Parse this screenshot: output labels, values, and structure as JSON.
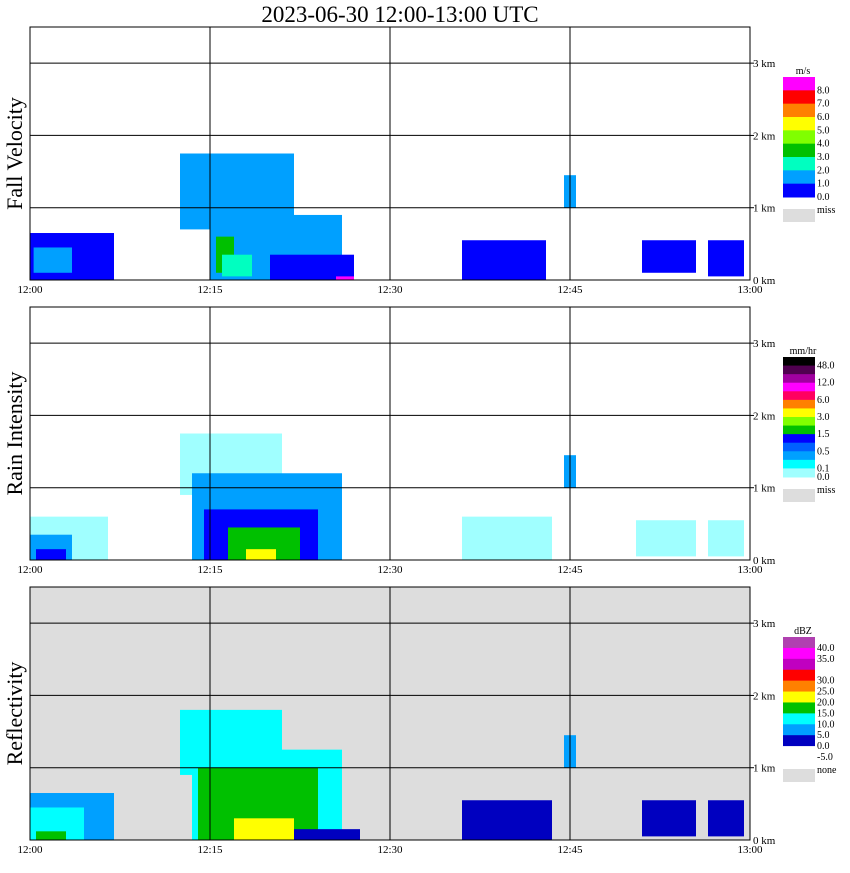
{
  "title": "2023-06-30  12:00-13:00 UTC",
  "chart_data": [
    {
      "type": "heatmap",
      "panel": "Fall Velocity",
      "ylabel": "Fall Velocity",
      "xticks": [
        "12:00",
        "12:15",
        "12:30",
        "12:45",
        "13:00"
      ],
      "yticks": [
        "1 km",
        "2 km",
        "3 km"
      ],
      "ymin_label": "0 km",
      "ylim_km": [
        0,
        3.5
      ],
      "xlim_min": [
        0,
        60
      ],
      "grid": true,
      "background": "white",
      "legend": {
        "unit": "m/s",
        "entries": [
          {
            "label": "8.0",
            "color": "#ff00ff"
          },
          {
            "label": "7.0",
            "color": "#ff0000"
          },
          {
            "label": "6.0",
            "color": "#ff8000"
          },
          {
            "label": "5.0",
            "color": "#ffff00"
          },
          {
            "label": "4.0",
            "color": "#80ff00"
          },
          {
            "label": "3.0",
            "color": "#00c000"
          },
          {
            "label": "2.0",
            "color": "#00ffc0"
          },
          {
            "label": "1.0",
            "color": "#00a0ff"
          },
          {
            "label": "0.0",
            "color": "#0000ff"
          }
        ],
        "missing": {
          "label": "miss",
          "color": "#dddddd"
        }
      },
      "echoes": [
        {
          "t0": 0,
          "t1": 7,
          "h0": 0,
          "h1": 0.65,
          "color": "#0000ff"
        },
        {
          "t0": 0.3,
          "t1": 3.5,
          "h0": 0.1,
          "h1": 0.45,
          "color": "#00a0ff"
        },
        {
          "t0": 12.5,
          "t1": 22,
          "h0": 0.7,
          "h1": 1.75,
          "color": "#00a0ff"
        },
        {
          "t0": 15,
          "t1": 26,
          "h0": 0,
          "h1": 0.9,
          "color": "#00a0ff"
        },
        {
          "t0": 15.5,
          "t1": 17,
          "h0": 0.1,
          "h1": 0.6,
          "color": "#00c000"
        },
        {
          "t0": 16,
          "t1": 18.5,
          "h0": 0.05,
          "h1": 0.35,
          "color": "#00ffc0"
        },
        {
          "t0": 20,
          "t1": 27,
          "h0": 0,
          "h1": 0.35,
          "color": "#0000ff"
        },
        {
          "t0": 25.5,
          "t1": 27,
          "h0": 0,
          "h1": 0.05,
          "color": "#ff00ff"
        },
        {
          "t0": 36,
          "t1": 43,
          "h0": 0,
          "h1": 0.55,
          "color": "#0000ff"
        },
        {
          "t0": 44.5,
          "t1": 45.5,
          "h0": 1.0,
          "h1": 1.45,
          "color": "#00a0ff"
        },
        {
          "t0": 51,
          "t1": 55.5,
          "h0": 0.1,
          "h1": 0.55,
          "color": "#0000ff"
        },
        {
          "t0": 56.5,
          "t1": 59.5,
          "h0": 0.05,
          "h1": 0.55,
          "color": "#0000ff"
        }
      ]
    },
    {
      "type": "heatmap",
      "panel": "Rain Intensity",
      "ylabel": "Rain Intensity",
      "xticks": [
        "12:00",
        "12:15",
        "12:30",
        "12:45",
        "13:00"
      ],
      "yticks": [
        "1 km",
        "2 km",
        "3 km"
      ],
      "ymin_label": "0 km",
      "ylim_km": [
        0,
        3.5
      ],
      "xlim_min": [
        0,
        60
      ],
      "grid": true,
      "background": "white",
      "legend": {
        "unit": "mm/hr",
        "entries": [
          {
            "label": "48.0",
            "color": "#000000"
          },
          {
            "label": "",
            "color": "#500050"
          },
          {
            "label": "12.0",
            "color": "#a000a0"
          },
          {
            "label": "",
            "color": "#ff00ff"
          },
          {
            "label": "6.0",
            "color": "#ff0060"
          },
          {
            "label": "",
            "color": "#ff8000"
          },
          {
            "label": "3.0",
            "color": "#ffff00"
          },
          {
            "label": "",
            "color": "#80ff00"
          },
          {
            "label": "1.5",
            "color": "#00c000"
          },
          {
            "label": "",
            "color": "#0000ff"
          },
          {
            "label": "0.5",
            "color": "#0060ff"
          },
          {
            "label": "",
            "color": "#00a0ff"
          },
          {
            "label": "0.1",
            "color": "#00ffff"
          },
          {
            "label": "0.0",
            "color": "#a0ffff"
          }
        ],
        "missing": {
          "label": "miss",
          "color": "#dddddd"
        }
      },
      "echoes": [
        {
          "t0": 0,
          "t1": 6.5,
          "h0": 0,
          "h1": 0.6,
          "color": "#a0ffff"
        },
        {
          "t0": 0,
          "t1": 3.5,
          "h0": 0,
          "h1": 0.35,
          "color": "#00a0ff"
        },
        {
          "t0": 0.5,
          "t1": 3,
          "h0": 0,
          "h1": 0.15,
          "color": "#0000ff"
        },
        {
          "t0": 12.5,
          "t1": 21,
          "h0": 0.9,
          "h1": 1.75,
          "color": "#a0ffff"
        },
        {
          "t0": 13.5,
          "t1": 26,
          "h0": 0,
          "h1": 1.2,
          "color": "#00a0ff"
        },
        {
          "t0": 14.5,
          "t1": 24,
          "h0": 0,
          "h1": 0.7,
          "color": "#0000ff"
        },
        {
          "t0": 16.5,
          "t1": 22.5,
          "h0": 0,
          "h1": 0.45,
          "color": "#00c000"
        },
        {
          "t0": 18,
          "t1": 20.5,
          "h0": 0,
          "h1": 0.15,
          "color": "#ffff00"
        },
        {
          "t0": 36,
          "t1": 43.5,
          "h0": 0,
          "h1": 0.6,
          "color": "#a0ffff"
        },
        {
          "t0": 44.5,
          "t1": 45.5,
          "h0": 1.0,
          "h1": 1.45,
          "color": "#00a0ff"
        },
        {
          "t0": 50.5,
          "t1": 55.5,
          "h0": 0.05,
          "h1": 0.55,
          "color": "#a0ffff"
        },
        {
          "t0": 56.5,
          "t1": 59.5,
          "h0": 0.05,
          "h1": 0.55,
          "color": "#a0ffff"
        }
      ]
    },
    {
      "type": "heatmap",
      "panel": "Reflectivity",
      "ylabel": "Reflectivity",
      "xticks": [
        "12:00",
        "12:15",
        "12:30",
        "12:45",
        "13:00"
      ],
      "yticks": [
        "1 km",
        "2 km",
        "3 km"
      ],
      "ymin_label": "0 km",
      "ylim_km": [
        0,
        3.5
      ],
      "xlim_min": [
        0,
        60
      ],
      "grid": true,
      "background": "#dddddd",
      "legend": {
        "unit": "dBZ",
        "entries": [
          {
            "label": "40.0",
            "color": "#b040b0"
          },
          {
            "label": "35.0",
            "color": "#ff00ff"
          },
          {
            "label": "",
            "color": "#c000c0"
          },
          {
            "label": "30.0",
            "color": "#ff0000"
          },
          {
            "label": "25.0",
            "color": "#ff8000"
          },
          {
            "label": "20.0",
            "color": "#ffff00"
          },
          {
            "label": "15.0",
            "color": "#00c000"
          },
          {
            "label": "10.0",
            "color": "#00ffff"
          },
          {
            "label": "5.0",
            "color": "#00a0ff"
          },
          {
            "label": "0.0",
            "color": "#0000c0"
          },
          {
            "label": "-5.0",
            "color": "#ffffff"
          }
        ],
        "missing": {
          "label": "none",
          "color": "#dddddd"
        }
      },
      "echoes": [
        {
          "t0": 0,
          "t1": 7,
          "h0": 0,
          "h1": 0.65,
          "color": "#00a0ff"
        },
        {
          "t0": 0,
          "t1": 4.5,
          "h0": 0,
          "h1": 0.45,
          "color": "#00ffff"
        },
        {
          "t0": 0.5,
          "t1": 3,
          "h0": 0,
          "h1": 0.12,
          "color": "#00c000"
        },
        {
          "t0": 12.5,
          "t1": 21,
          "h0": 0.9,
          "h1": 1.8,
          "color": "#00ffff"
        },
        {
          "t0": 13.5,
          "t1": 26,
          "h0": 0,
          "h1": 1.25,
          "color": "#00ffff"
        },
        {
          "t0": 14,
          "t1": 24,
          "h0": 0,
          "h1": 1.0,
          "color": "#00c000"
        },
        {
          "t0": 17,
          "t1": 22,
          "h0": 0,
          "h1": 0.3,
          "color": "#ffff00"
        },
        {
          "t0": 22,
          "t1": 27.5,
          "h0": 0,
          "h1": 0.15,
          "color": "#0000c0"
        },
        {
          "t0": 36,
          "t1": 43.5,
          "h0": 0,
          "h1": 0.55,
          "color": "#0000c0"
        },
        {
          "t0": 44.5,
          "t1": 45.5,
          "h0": 1.0,
          "h1": 1.45,
          "color": "#00a0ff"
        },
        {
          "t0": 51,
          "t1": 55.5,
          "h0": 0.05,
          "h1": 0.55,
          "color": "#0000c0"
        },
        {
          "t0": 56.5,
          "t1": 59.5,
          "h0": 0.05,
          "h1": 0.55,
          "color": "#0000c0"
        }
      ]
    }
  ]
}
